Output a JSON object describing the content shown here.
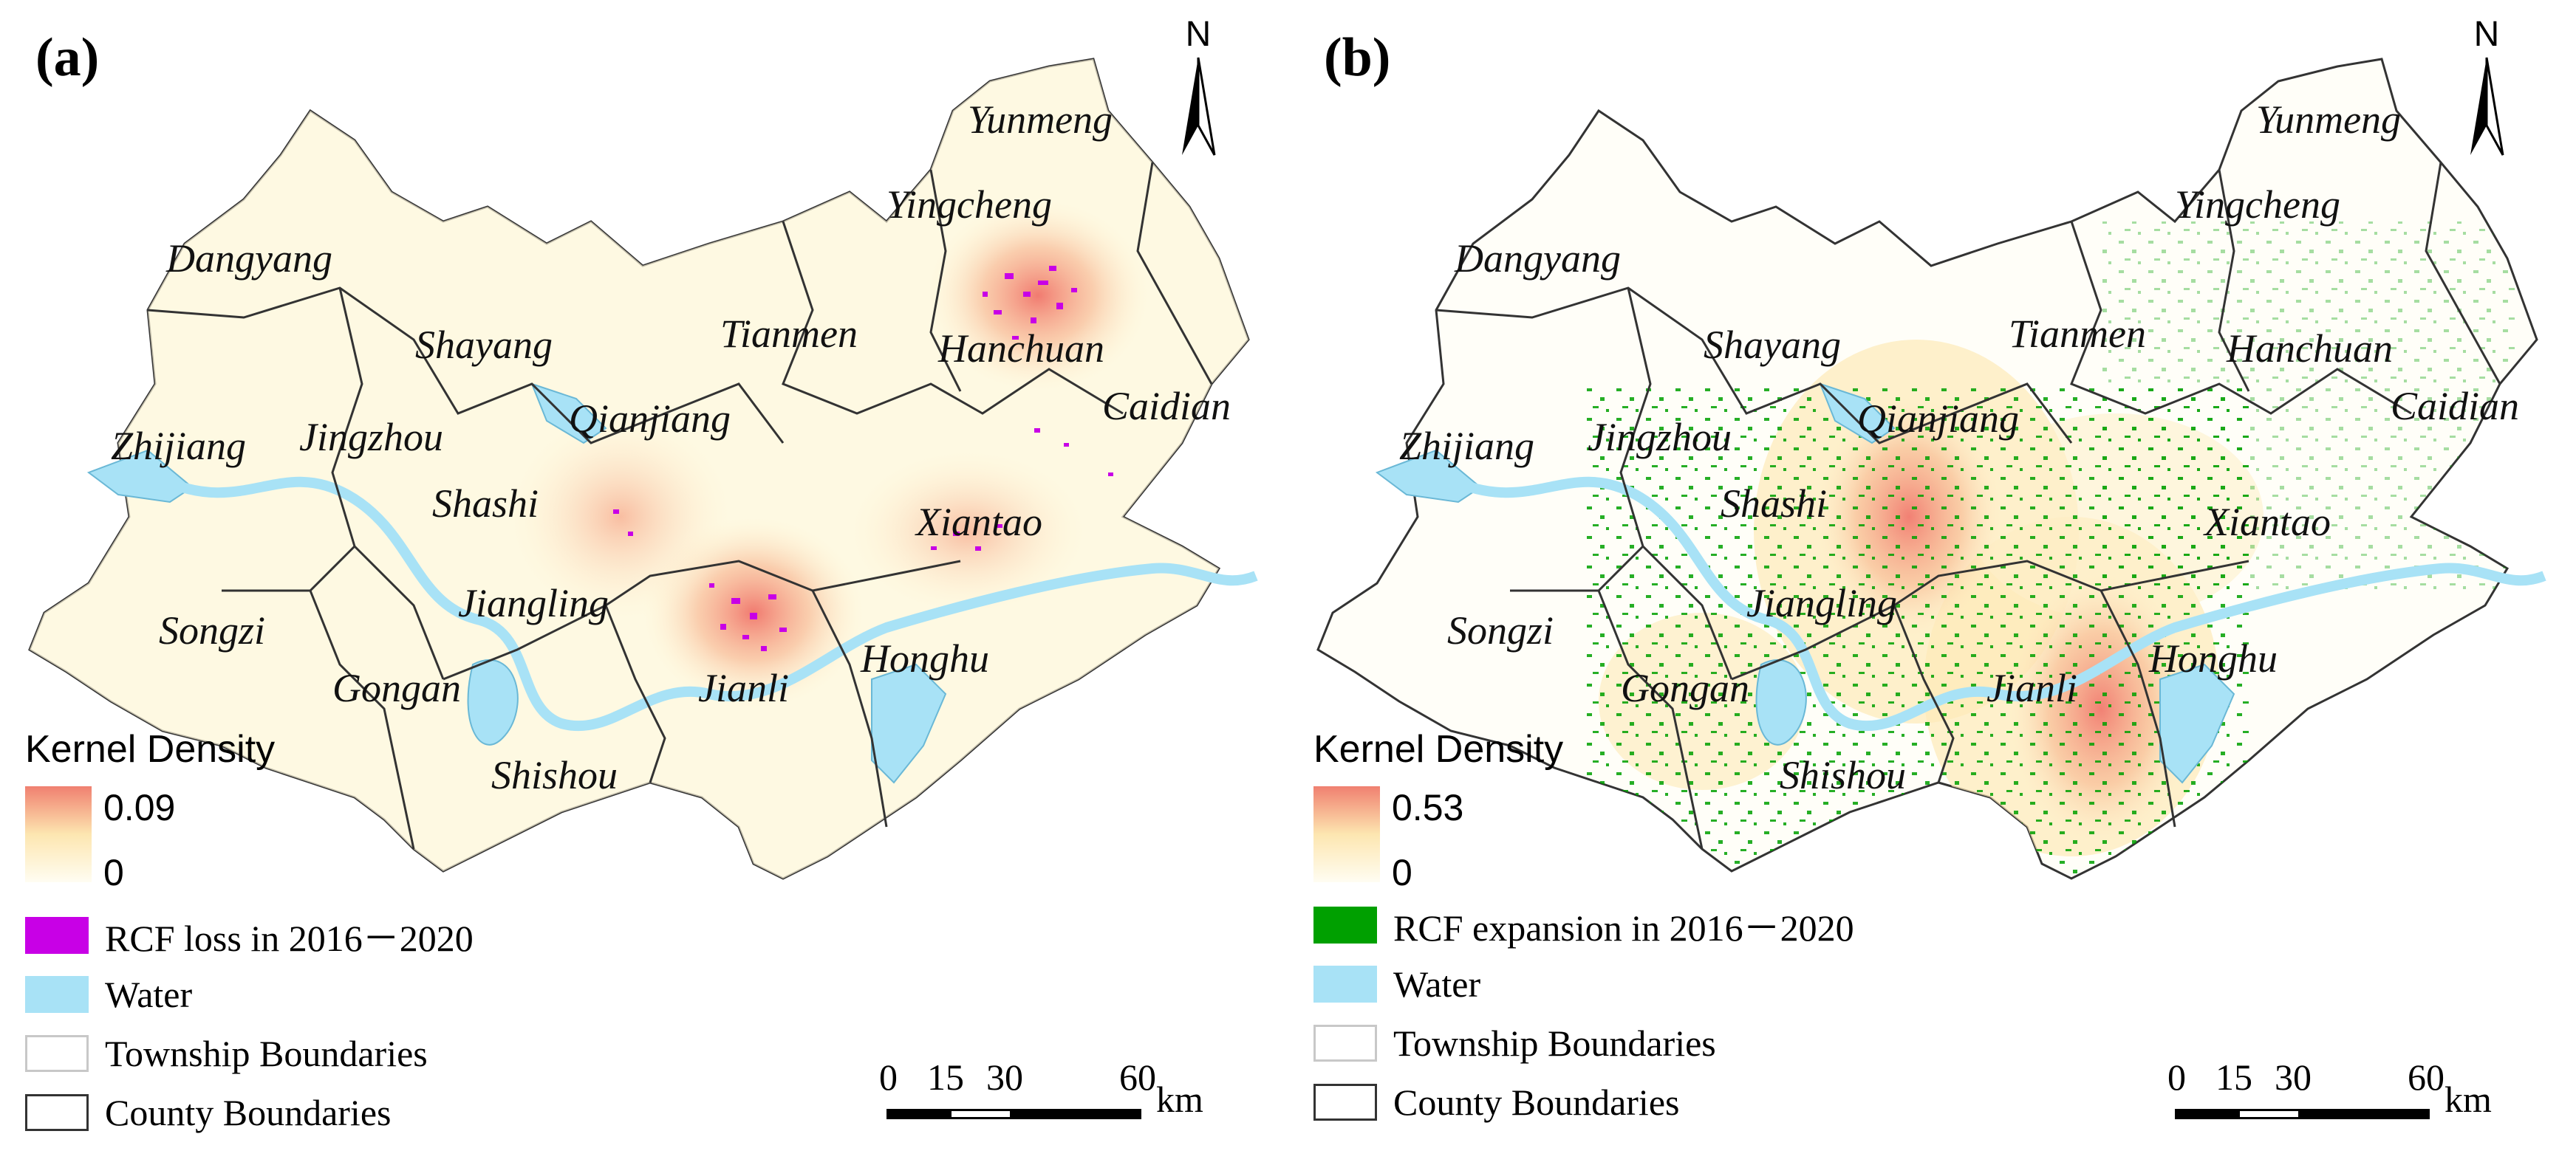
{
  "colors": {
    "loss": "#c800e6",
    "expansion": "#00a000",
    "water": "#a8e2f6",
    "township_boundary": "#c8c8c8",
    "county_boundary": "#333333",
    "density_high": "#f08070",
    "density_low": "#fffbe6"
  },
  "north_arrow": {
    "label": "N",
    "icon": "north-arrow-icon"
  },
  "panels": [
    {
      "label": "(a)",
      "counties": {
        "yunmeng": "Yunmeng",
        "yingcheng": "Yingcheng",
        "dangyang": "Dangyang",
        "tianmen": "Tianmen",
        "hanchuan": "Hanchuan",
        "shayang": "Shayang",
        "caidian": "Caidian",
        "zhijiang": "Zhijiang",
        "jingzhou": "Jingzhou",
        "qianjiang": "Qianjiang",
        "shashi": "Shashi",
        "xiantao": "Xiantao",
        "jiangling": "Jiangling",
        "songzi": "Songzi",
        "honghu": "Honghu",
        "gongan": "Gongan",
        "jianli": "Jianli",
        "shishou": "Shishou"
      },
      "legend": {
        "title": "Kernel Density",
        "max": "0.09",
        "min": "0",
        "items": [
          "RCF loss in 2016－2020",
          "Water",
          "Township Boundaries",
          "County Boundaries"
        ]
      },
      "scale": {
        "ticks": [
          "0",
          "15",
          "30",
          "60"
        ],
        "unit": "km"
      }
    },
    {
      "label": "(b)",
      "counties": {
        "yunmeng": "Yunmeng",
        "yingcheng": "Yingcheng",
        "dangyang": "Dangyang",
        "tianmen": "Tianmen",
        "hanchuan": "Hanchuan",
        "shayang": "Shayang",
        "caidian": "Caidian",
        "zhijiang": "Zhijiang",
        "jingzhou": "Jingzhou",
        "qianjiang": "Qianjiang",
        "shashi": "Shashi",
        "xiantao": "Xiantao",
        "jiangling": "Jiangling",
        "songzi": "Songzi",
        "honghu": "Honghu",
        "gongan": "Gongan",
        "jianli": "Jianli",
        "shishou": "Shishou"
      },
      "legend": {
        "title": "Kernel Density",
        "max": "0.53",
        "min": "0",
        "items": [
          "RCF expansion in 2016－2020",
          "Water",
          "Township Boundaries",
          "County Boundaries"
        ]
      },
      "scale": {
        "ticks": [
          "0",
          "15",
          "30",
          "60"
        ],
        "unit": "km"
      }
    }
  ]
}
